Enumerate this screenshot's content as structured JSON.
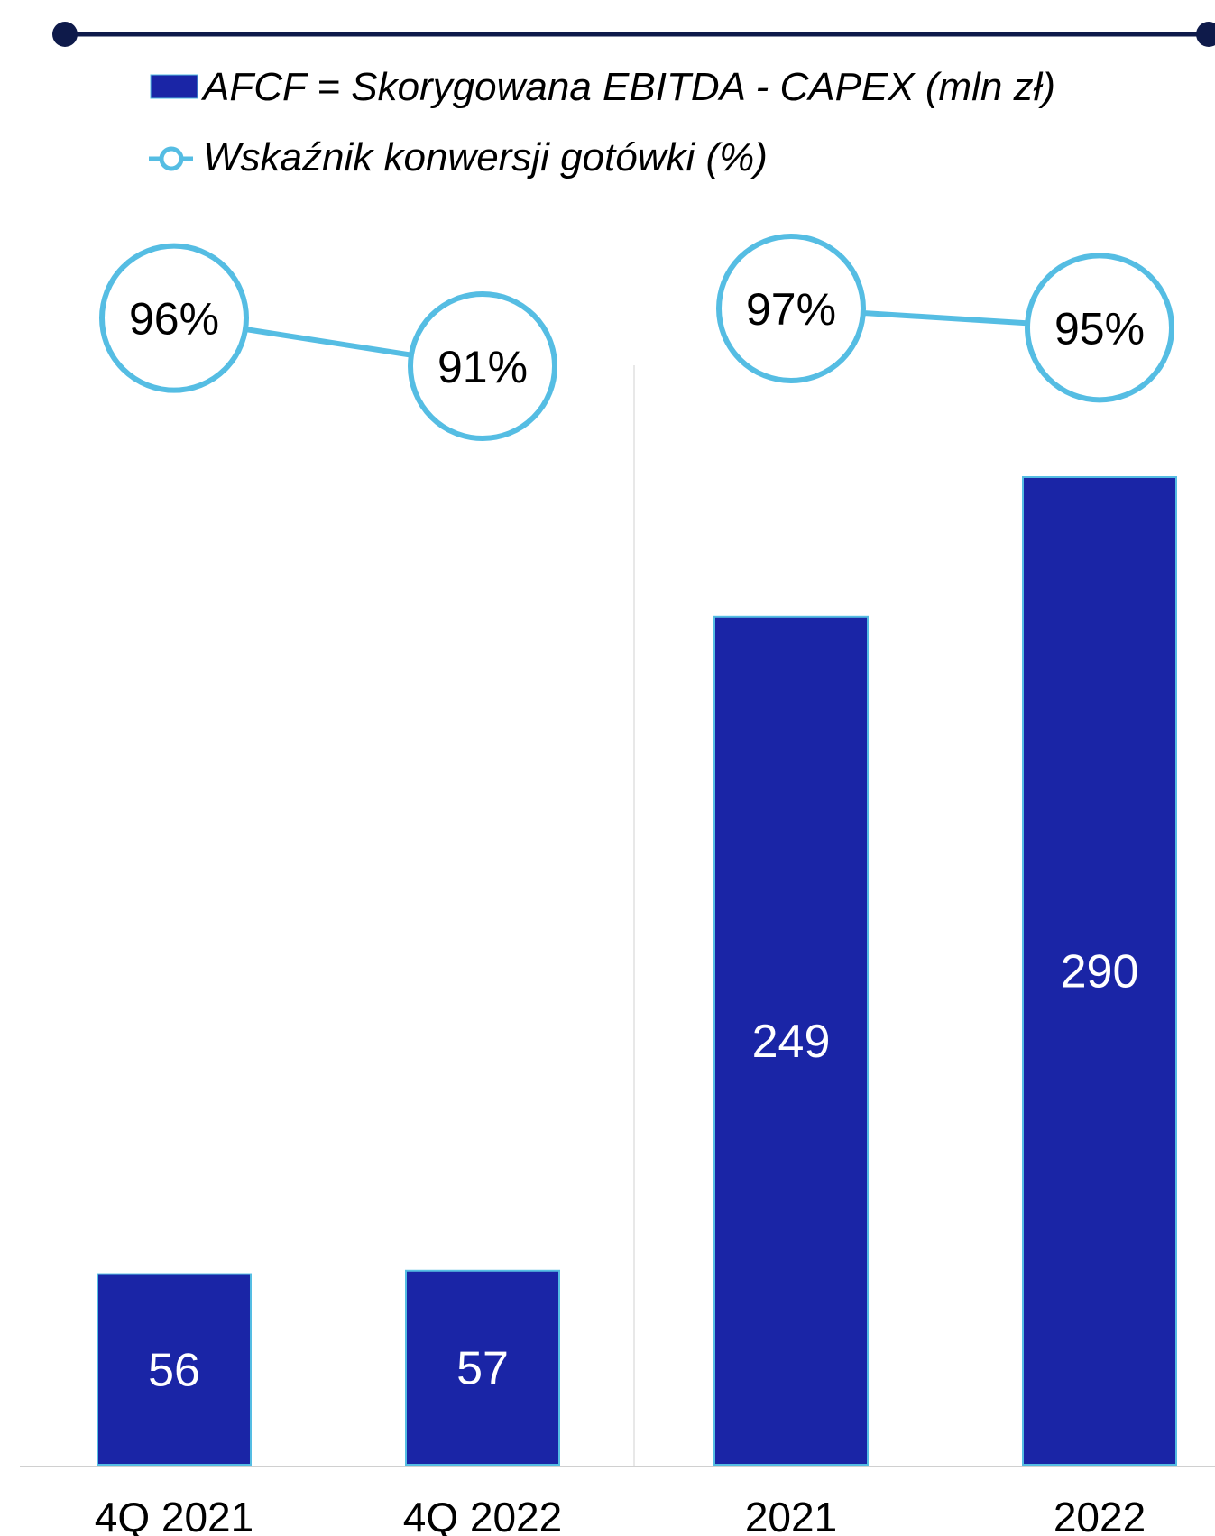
{
  "chart_data": {
    "type": "bar",
    "categories": [
      "4Q 2021",
      "4Q 2022",
      "2021",
      "2022"
    ],
    "series": [
      {
        "name": "AFCF = Skorygowana EBITDA - CAPEX (mln zł)",
        "type": "bar",
        "values": [
          56,
          57,
          249,
          290
        ],
        "value_labels": [
          "56",
          "57",
          "249",
          "290"
        ]
      },
      {
        "name": "Wskaźnik konwersji gotówki (%)",
        "type": "line",
        "values": [
          96,
          91,
          97,
          95
        ],
        "value_labels": [
          "96%",
          "91%",
          "97%",
          "95%"
        ],
        "segments": [
          [
            0,
            1
          ],
          [
            2,
            3
          ]
        ]
      }
    ],
    "legend_position": "top-left",
    "grid": false,
    "ylim": [
      0,
      290
    ],
    "line_ylim": [
      90,
      100
    ]
  },
  "colors": {
    "bar": "#1a25a6",
    "line": "#55bde3",
    "rule": "#0e1a4a",
    "separator": "#e8e8e8",
    "axis": "#d0d0d0"
  }
}
